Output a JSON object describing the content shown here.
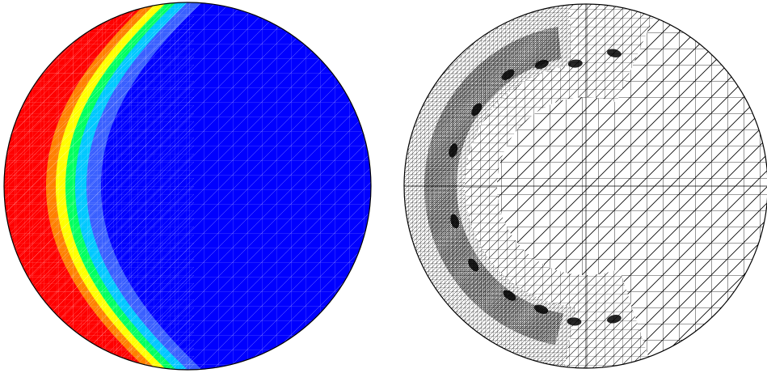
{
  "figure": {
    "panels": [
      {
        "id": "solution-field",
        "kind": "colored-contour-on-triangular-mesh",
        "domain_shape": "disk",
        "colormap": [
          "#ff0000",
          "#ff8000",
          "#ffff00",
          "#00ff00",
          "#00ffff",
          "#0000ff"
        ],
        "background_color": "#0000ff",
        "mesh_line_color": "#ffffff",
        "outline_color": "#000000"
      },
      {
        "id": "adapted-mesh",
        "kind": "triangular-mesh-wireframe",
        "domain_shape": "disk",
        "mesh_line_color": "#000000",
        "refined_band": "dense-near-front"
      }
    ]
  }
}
